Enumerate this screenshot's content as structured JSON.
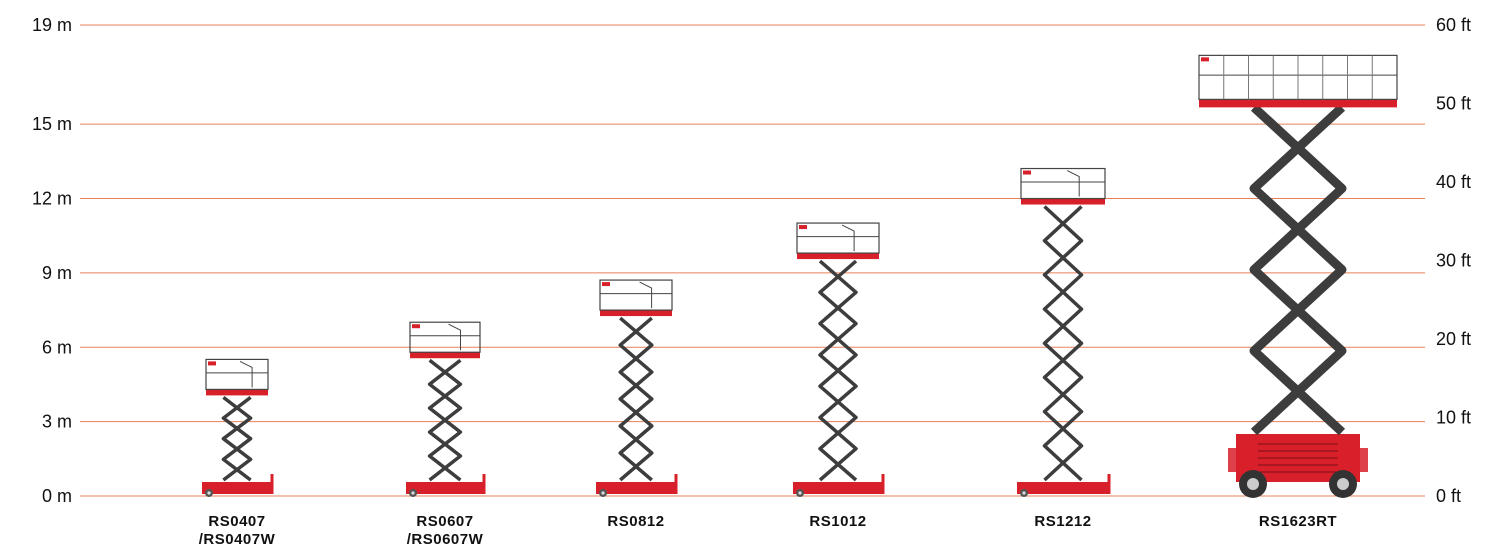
{
  "chart_data": {
    "type": "bar",
    "title": "",
    "xlabel": "",
    "ylabel": "",
    "ylim": [
      0,
      19
    ],
    "grid": true,
    "left_axis_ticks": [
      {
        "value": 0,
        "label": "0 m"
      },
      {
        "value": 3,
        "label": "3 m"
      },
      {
        "value": 6,
        "label": "6 m"
      },
      {
        "value": 9,
        "label": "9 m"
      },
      {
        "value": 12,
        "label": "12 m"
      },
      {
        "value": 15,
        "label": "15 m"
      },
      {
        "value": 19,
        "label": "19 m"
      }
    ],
    "right_axis_ticks": [
      {
        "value": 0,
        "label": "0 ft"
      },
      {
        "value": 10,
        "label": "10 ft"
      },
      {
        "value": 20,
        "label": "20 ft"
      },
      {
        "value": 30,
        "label": "30 ft"
      },
      {
        "value": 40,
        "label": "40 ft"
      },
      {
        "value": 50,
        "label": "50 ft"
      },
      {
        "value": 60,
        "label": "60 ft"
      }
    ],
    "categories": [
      {
        "line1": "RS0407",
        "line2": "/RS0407W"
      },
      {
        "line1": "RS0607",
        "line2": "/RS0607W"
      },
      {
        "line1": "RS0812",
        "line2": ""
      },
      {
        "line1": "RS1012",
        "line2": ""
      },
      {
        "line1": "RS1212",
        "line2": ""
      },
      {
        "line1": "RS1623RT",
        "line2": ""
      }
    ],
    "values_m": [
      4.3,
      5.8,
      7.5,
      9.8,
      12.0,
      16.0
    ],
    "colors": {
      "machine_red": "#d8202a",
      "scissor": "#3d3d3d",
      "gridline": "#e8805a",
      "text": "#111111"
    }
  }
}
